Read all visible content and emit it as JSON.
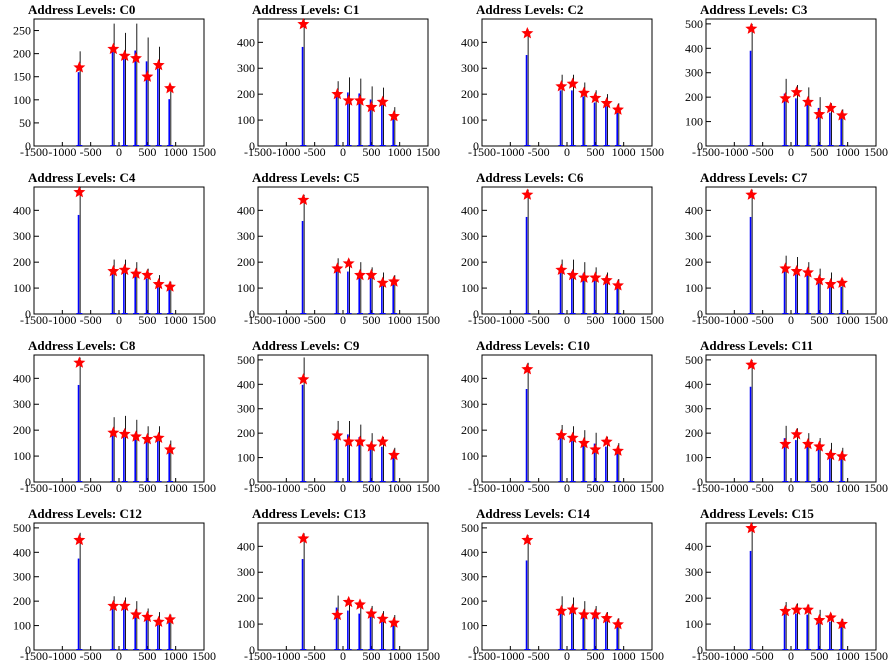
{
  "chart_data": [
    {
      "type": "bar",
      "title": "Address Levels: C0",
      "xlim": [
        -1500,
        1500
      ],
      "ylim": [
        0,
        275
      ],
      "yticks": [
        0,
        50,
        100,
        150,
        200,
        250
      ],
      "xticks": [
        -1500,
        -1000,
        -500,
        0,
        500,
        1000,
        1500
      ],
      "x": [
        -700,
        -100,
        100,
        300,
        500,
        700,
        900
      ],
      "peak_values": [
        205,
        265,
        245,
        265,
        235,
        215,
        130
      ],
      "star_values": [
        170,
        210,
        195,
        190,
        150,
        175,
        125
      ]
    },
    {
      "type": "bar",
      "title": "Address Levels: C1",
      "xlim": [
        -1500,
        1500
      ],
      "ylim": [
        0,
        490
      ],
      "yticks": [
        0,
        100,
        200,
        300,
        400
      ],
      "xticks": [
        -1500,
        -1000,
        -500,
        0,
        500,
        1000,
        1500
      ],
      "x": [
        -700,
        -100,
        100,
        300,
        500,
        700,
        900
      ],
      "peak_values": [
        490,
        250,
        265,
        260,
        230,
        225,
        150
      ],
      "star_values": [
        470,
        200,
        175,
        175,
        150,
        170,
        115
      ]
    },
    {
      "type": "bar",
      "title": "Address Levels: C2",
      "xlim": [
        -1500,
        1500
      ],
      "ylim": [
        0,
        490
      ],
      "yticks": [
        0,
        100,
        200,
        300,
        400
      ],
      "xticks": [
        -1500,
        -1000,
        -500,
        0,
        500,
        1000,
        1500
      ],
      "x": [
        -700,
        -100,
        100,
        300,
        500,
        700,
        900
      ],
      "peak_values": [
        450,
        275,
        275,
        245,
        215,
        200,
        165
      ],
      "star_values": [
        435,
        230,
        240,
        205,
        185,
        165,
        140
      ]
    },
    {
      "type": "bar",
      "title": "Address Levels: C3",
      "xlim": [
        -1500,
        1500
      ],
      "ylim": [
        0,
        520
      ],
      "yticks": [
        0,
        100,
        200,
        300,
        400,
        500
      ],
      "xticks": [
        -1500,
        -1000,
        -500,
        0,
        500,
        1000,
        1500
      ],
      "x": [
        -700,
        -100,
        100,
        300,
        500,
        700,
        900
      ],
      "peak_values": [
        500,
        275,
        250,
        240,
        200,
        175,
        150
      ],
      "star_values": [
        480,
        195,
        220,
        180,
        130,
        155,
        125
      ]
    },
    {
      "type": "bar",
      "title": "Address Levels: C4",
      "xlim": [
        -1500,
        1500
      ],
      "ylim": [
        0,
        490
      ],
      "yticks": [
        0,
        100,
        200,
        300,
        400
      ],
      "xticks": [
        -1500,
        -1000,
        -500,
        0,
        500,
        1000,
        1500
      ],
      "x": [
        -700,
        -100,
        100,
        300,
        500,
        700,
        900
      ],
      "peak_values": [
        490,
        210,
        210,
        200,
        175,
        150,
        125
      ],
      "star_values": [
        470,
        165,
        170,
        155,
        150,
        115,
        105
      ]
    },
    {
      "type": "bar",
      "title": "Address Levels: C5",
      "xlim": [
        -1500,
        1500
      ],
      "ylim": [
        0,
        490
      ],
      "yticks": [
        0,
        100,
        200,
        300,
        400
      ],
      "xticks": [
        -1500,
        -1000,
        -500,
        0,
        500,
        1000,
        1500
      ],
      "x": [
        -700,
        -100,
        100,
        300,
        500,
        700,
        900
      ],
      "peak_values": [
        460,
        215,
        210,
        200,
        180,
        160,
        150
      ],
      "star_values": [
        440,
        175,
        195,
        150,
        150,
        120,
        125
      ]
    },
    {
      "type": "bar",
      "title": "Address Levels: C6",
      "xlim": [
        -1500,
        1500
      ],
      "ylim": [
        0,
        490
      ],
      "yticks": [
        0,
        100,
        200,
        300,
        400
      ],
      "xticks": [
        -1500,
        -1000,
        -500,
        0,
        500,
        1000,
        1500
      ],
      "x": [
        -700,
        -100,
        100,
        300,
        500,
        700,
        900
      ],
      "peak_values": [
        480,
        210,
        210,
        200,
        180,
        160,
        135
      ],
      "star_values": [
        460,
        170,
        150,
        140,
        140,
        130,
        110
      ]
    },
    {
      "type": "bar",
      "title": "Address Levels: C7",
      "xlim": [
        -1500,
        1500
      ],
      "ylim": [
        0,
        490
      ],
      "yticks": [
        0,
        100,
        200,
        300,
        400
      ],
      "xticks": [
        -1500,
        -1000,
        -500,
        0,
        500,
        1000,
        1500
      ],
      "x": [
        -700,
        -100,
        100,
        300,
        500,
        700,
        900
      ],
      "peak_values": [
        480,
        225,
        220,
        200,
        175,
        160,
        135
      ],
      "star_values": [
        460,
        175,
        165,
        160,
        130,
        115,
        120
      ]
    },
    {
      "type": "bar",
      "title": "Address Levels: C8",
      "xlim": [
        -1500,
        1500
      ],
      "ylim": [
        0,
        490
      ],
      "yticks": [
        0,
        100,
        200,
        300,
        400
      ],
      "xticks": [
        -1500,
        -1000,
        -500,
        0,
        500,
        1000,
        1500
      ],
      "x": [
        -700,
        -100,
        100,
        300,
        500,
        700,
        900
      ],
      "peak_values": [
        480,
        250,
        255,
        240,
        215,
        215,
        160
      ],
      "star_values": [
        460,
        190,
        185,
        175,
        165,
        170,
        125
      ]
    },
    {
      "type": "bar",
      "title": "Address Levels: C9",
      "xlim": [
        -1500,
        1500
      ],
      "ylim": [
        0,
        520
      ],
      "yticks": [
        0,
        100,
        200,
        300,
        400,
        500
      ],
      "xticks": [
        -1500,
        -1000,
        -500,
        0,
        500,
        1000,
        1500
      ],
      "x": [
        -700,
        -100,
        100,
        300,
        500,
        700,
        900
      ],
      "peak_values": [
        510,
        250,
        250,
        235,
        200,
        185,
        140
      ],
      "star_values": [
        420,
        190,
        165,
        165,
        145,
        165,
        110
      ]
    },
    {
      "type": "bar",
      "title": "Address Levels: C10",
      "xlim": [
        -1500,
        1500
      ],
      "ylim": [
        0,
        490
      ],
      "yticks": [
        0,
        100,
        200,
        300,
        400
      ],
      "xticks": [
        -1500,
        -1000,
        -500,
        0,
        500,
        1000,
        1500
      ],
      "x": [
        -700,
        -100,
        100,
        300,
        500,
        700,
        900
      ],
      "peak_values": [
        460,
        220,
        215,
        200,
        190,
        175,
        150
      ],
      "star_values": [
        435,
        180,
        170,
        150,
        125,
        155,
        120
      ]
    },
    {
      "type": "bar",
      "title": "Address Levels: C11",
      "xlim": [
        -1500,
        1500
      ],
      "ylim": [
        0,
        520
      ],
      "yticks": [
        0,
        100,
        200,
        300,
        400,
        500
      ],
      "xticks": [
        -1500,
        -1000,
        -500,
        0,
        500,
        1000,
        1500
      ],
      "x": [
        -700,
        -100,
        100,
        300,
        500,
        700,
        900
      ],
      "peak_values": [
        500,
        230,
        220,
        200,
        180,
        160,
        140
      ],
      "star_values": [
        480,
        155,
        195,
        155,
        145,
        110,
        105
      ]
    },
    {
      "type": "bar",
      "title": "Address Levels: C12",
      "xlim": [
        -1500,
        1500
      ],
      "ylim": [
        0,
        520
      ],
      "yticks": [
        0,
        100,
        200,
        300,
        400,
        500
      ],
      "xticks": [
        -1500,
        -1000,
        -500,
        0,
        500,
        1000,
        1500
      ],
      "x": [
        -700,
        -100,
        100,
        300,
        500,
        700,
        900
      ],
      "peak_values": [
        480,
        220,
        215,
        200,
        170,
        155,
        145
      ],
      "star_values": [
        450,
        180,
        180,
        145,
        135,
        115,
        125
      ]
    },
    {
      "type": "bar",
      "title": "Address Levels: C13",
      "xlim": [
        -1500,
        1500
      ],
      "ylim": [
        0,
        490
      ],
      "yticks": [
        0,
        100,
        200,
        300,
        400
      ],
      "xticks": [
        -1500,
        -1000,
        -500,
        0,
        500,
        1000,
        1500
      ],
      "x": [
        -700,
        -100,
        100,
        300,
        500,
        700,
        900
      ],
      "peak_values": [
        450,
        210,
        195,
        180,
        170,
        150,
        135
      ],
      "star_values": [
        430,
        135,
        185,
        175,
        140,
        120,
        105
      ]
    },
    {
      "type": "bar",
      "title": "Address Levels: C14",
      "xlim": [
        -1500,
        1500
      ],
      "ylim": [
        0,
        520
      ],
      "yticks": [
        0,
        100,
        200,
        300,
        400,
        500
      ],
      "xticks": [
        -1500,
        -1000,
        -500,
        0,
        500,
        1000,
        1500
      ],
      "x": [
        -700,
        -100,
        100,
        300,
        500,
        700,
        900
      ],
      "peak_values": [
        470,
        220,
        215,
        200,
        180,
        155,
        130
      ],
      "star_values": [
        450,
        160,
        165,
        145,
        145,
        130,
        105
      ]
    },
    {
      "type": "bar",
      "title": "Address Levels: C15",
      "xlim": [
        -1500,
        1500
      ],
      "ylim": [
        0,
        490
      ],
      "yticks": [
        0,
        100,
        200,
        300,
        400
      ],
      "xticks": [
        -1500,
        -1000,
        -500,
        0,
        500,
        1000,
        1500
      ],
      "x": [
        -700,
        -100,
        100,
        300,
        500,
        700,
        900
      ],
      "peak_values": [
        490,
        185,
        180,
        175,
        155,
        140,
        120
      ],
      "star_values": [
        470,
        150,
        155,
        155,
        115,
        125,
        100
      ]
    }
  ],
  "colors": {
    "series": "#0000ff",
    "outline": "#000000",
    "marker": "#ff0000"
  }
}
